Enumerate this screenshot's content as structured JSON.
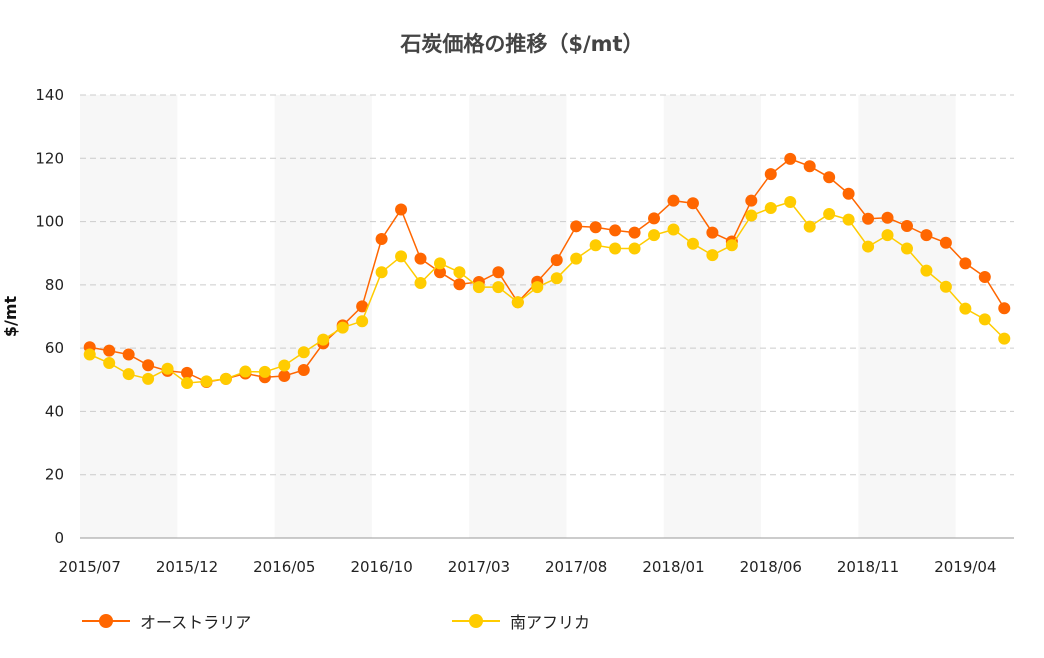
{
  "chart_data": {
    "type": "line",
    "title": "石炭価格の推移（$/mt）",
    "ylabel": "$/mt",
    "xlabel": "",
    "ylim": [
      0,
      140
    ],
    "yticks": [
      0,
      20,
      40,
      60,
      80,
      100,
      120,
      140
    ],
    "grid": true,
    "legend_position": "bottom",
    "x": [
      "2015/07",
      "2015/08",
      "2015/09",
      "2015/10",
      "2015/11",
      "2015/12",
      "2016/01",
      "2016/02",
      "2016/03",
      "2016/04",
      "2016/05",
      "2016/06",
      "2016/07",
      "2016/08",
      "2016/09",
      "2016/10",
      "2016/11",
      "2016/12",
      "2017/01",
      "2017/02",
      "2017/03",
      "2017/04",
      "2017/05",
      "2017/06",
      "2017/07",
      "2017/08",
      "2017/09",
      "2017/10",
      "2017/11",
      "2017/12",
      "2018/01",
      "2018/02",
      "2018/03",
      "2018/04",
      "2018/05",
      "2018/06",
      "2018/07",
      "2018/08",
      "2018/09",
      "2018/10",
      "2018/11",
      "2018/12",
      "2019/01",
      "2019/02",
      "2019/03",
      "2019/04",
      "2019/05",
      "2019/06"
    ],
    "x_tick_labels": [
      "2015/07",
      "2015/12",
      "2016/05",
      "2016/10",
      "2017/03",
      "2017/08",
      "2018/01",
      "2018/06",
      "2018/11",
      "2019/04"
    ],
    "series": [
      {
        "name": "オーストラリア",
        "color": "#ff6600",
        "values": [
          60.3,
          59.2,
          58.0,
          54.6,
          52.8,
          52.2,
          49.3,
          50.3,
          52.0,
          50.8,
          51.2,
          53.1,
          61.5,
          67.2,
          73.2,
          94.5,
          103.8,
          88.3,
          84.0,
          80.2,
          80.9,
          84.0,
          74.5,
          81.0,
          87.8,
          98.5,
          98.2,
          97.2,
          96.5,
          101.0,
          106.6,
          105.8,
          96.5,
          93.7,
          106.6,
          115.0,
          119.8,
          117.5,
          114.0,
          108.8,
          100.9,
          101.2,
          98.6,
          95.7,
          93.3,
          86.8,
          82.5,
          72.6
        ]
      },
      {
        "name": "南アフリカ",
        "color": "#ffcc00",
        "values": [
          58.0,
          55.3,
          51.8,
          50.3,
          53.5,
          49.0,
          49.5,
          50.3,
          52.6,
          52.5,
          54.5,
          58.7,
          62.7,
          66.5,
          68.5,
          84.0,
          89.0,
          80.6,
          86.8,
          84.0,
          79.3,
          79.3,
          74.5,
          79.3,
          82.1,
          88.3,
          92.5,
          91.5,
          91.5,
          95.7,
          97.5,
          93.0,
          89.4,
          92.5,
          101.9,
          104.3,
          106.2,
          98.4,
          102.4,
          100.6,
          92.1,
          95.7,
          91.5,
          84.5,
          79.4,
          72.5,
          69.1,
          63.0
        ]
      }
    ]
  }
}
